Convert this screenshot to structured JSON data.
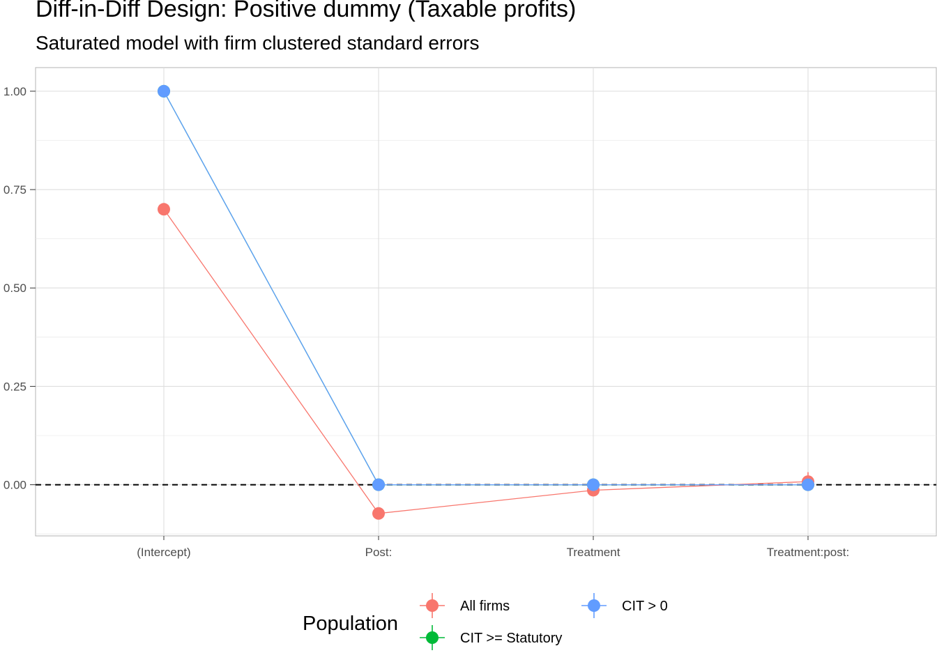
{
  "chart_data": {
    "type": "scatter",
    "title": "Diff-in-Diff Design: Positive dummy (Taxable profits)",
    "subtitle": "Saturated model with firm clustered standard errors",
    "xlabel": "",
    "ylabel": "",
    "categories": [
      "(Intercept)",
      "Post:",
      "Treatment",
      "Treatment:post:"
    ],
    "ylim": [
      -0.13,
      1.06
    ],
    "y_ticks": [
      "0.00",
      "0.25",
      "0.50",
      "0.75",
      "1.00"
    ],
    "grid": true,
    "reference_line": {
      "y": 0,
      "style": "dashed"
    },
    "legend": {
      "title": "Population",
      "position": "bottom"
    },
    "series": [
      {
        "name": "CIT >= Statutory",
        "color": "#00BA38",
        "values": [
          1.0,
          0.0,
          0.0,
          0.0
        ],
        "lower": [
          1.0,
          0.0,
          0.0,
          0.0
        ],
        "upper": [
          1.0,
          0.0,
          0.0,
          0.0
        ]
      },
      {
        "name": "All firms",
        "color": "#F8766D",
        "values": [
          0.7,
          -0.073,
          -0.014,
          0.008
        ],
        "lower": [
          0.7,
          -0.073,
          -0.027,
          -0.016
        ],
        "upper": [
          0.7,
          -0.073,
          -0.001,
          0.032
        ]
      },
      {
        "name": "CIT > 0",
        "color": "#619CFF",
        "values": [
          1.0,
          0.0,
          0.0,
          0.0
        ],
        "lower": [
          1.0,
          0.0,
          0.0,
          -0.005
        ],
        "upper": [
          1.0,
          0.0,
          0.0,
          0.005
        ]
      }
    ],
    "legend_order": [
      "All firms",
      "CIT > 0",
      "CIT >= Statutory"
    ]
  }
}
